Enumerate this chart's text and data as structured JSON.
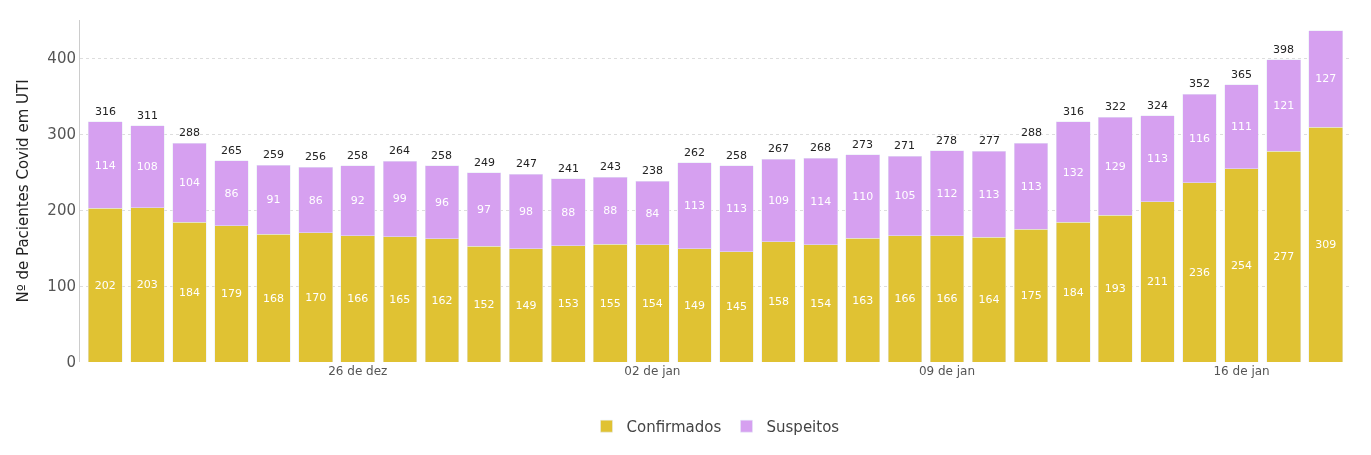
{
  "chart_data": {
    "type": "bar",
    "stacked": true,
    "ylabel": "Nº de Pacientes Covid em UTI",
    "categories": [
      null,
      null,
      null,
      null,
      null,
      null,
      "26 de dez",
      null,
      null,
      null,
      null,
      null,
      null,
      "02 de jan",
      null,
      null,
      null,
      null,
      null,
      null,
      "09 de jan",
      null,
      null,
      null,
      null,
      null,
      null,
      "16 de jan",
      null,
      null
    ],
    "series": [
      {
        "name": "Confirmados",
        "color": "#e0c233",
        "values": [
          202,
          203,
          184,
          179,
          168,
          170,
          166,
          165,
          162,
          152,
          149,
          153,
          155,
          154,
          149,
          145,
          158,
          154,
          163,
          166,
          166,
          164,
          175,
          184,
          193,
          211,
          236,
          254,
          277,
          309
        ]
      },
      {
        "name": "Suspeitos",
        "color": "#d6a0f0",
        "values": [
          114,
          108,
          104,
          86,
          91,
          86,
          92,
          99,
          96,
          97,
          98,
          88,
          88,
          84,
          113,
          113,
          109,
          114,
          110,
          105,
          112,
          113,
          113,
          132,
          129,
          113,
          116,
          111,
          121,
          127
        ]
      }
    ],
    "totals": [
      "316",
      "311",
      "288",
      "265",
      "259",
      "256",
      "258",
      "264",
      "258",
      "249",
      "247",
      "241",
      "243",
      "238",
      "262",
      "258",
      "267",
      "268",
      "273",
      "271",
      "278",
      "277",
      "288",
      "316",
      "322",
      "324",
      "352",
      "365",
      "398",
      null
    ],
    "data_labels": true,
    "ylim": [
      0,
      450
    ],
    "yticks": [
      0,
      100,
      200,
      300,
      400
    ],
    "grid": "y",
    "legend": "bottom"
  }
}
